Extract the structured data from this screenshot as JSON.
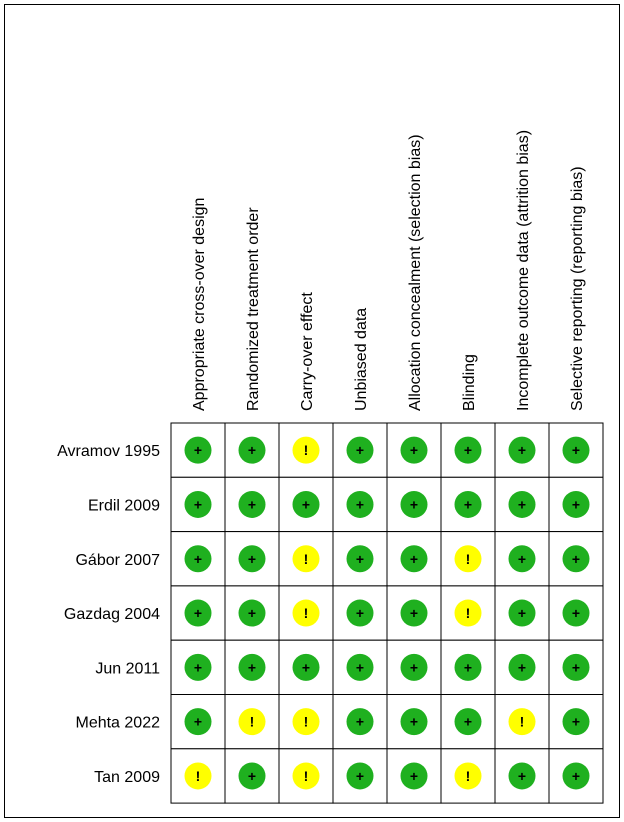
{
  "columns": [
    "Appropriate cross-over design",
    "Randomized treatment order",
    "Carry-over effect",
    "Unbiased data",
    "Allocation concealment (selection bias)",
    "Blinding",
    "Incomplete outcome data (attrition bias)",
    "Selective reporting (reporting bias)"
  ],
  "rows": [
    {
      "label": "Avramov 1995",
      "cells": [
        {
          "text": "+",
          "color": "#1fb01f"
        },
        {
          "text": "+",
          "color": "#1fb01f"
        },
        {
          "text": "!",
          "color": "#ffff00"
        },
        {
          "text": "+",
          "color": "#1fb01f"
        },
        {
          "text": "+",
          "color": "#1fb01f"
        },
        {
          "text": "+",
          "color": "#1fb01f"
        },
        {
          "text": "+",
          "color": "#1fb01f"
        },
        {
          "text": "+",
          "color": "#1fb01f"
        }
      ]
    },
    {
      "label": "Erdil 2009",
      "cells": [
        {
          "text": "+",
          "color": "#1fb01f"
        },
        {
          "text": "+",
          "color": "#1fb01f"
        },
        {
          "text": "+",
          "color": "#1fb01f"
        },
        {
          "text": "+",
          "color": "#1fb01f"
        },
        {
          "text": "+",
          "color": "#1fb01f"
        },
        {
          "text": "+",
          "color": "#1fb01f"
        },
        {
          "text": "+",
          "color": "#1fb01f"
        },
        {
          "text": "+",
          "color": "#1fb01f"
        }
      ]
    },
    {
      "label": "Gábor 2007",
      "cells": [
        {
          "text": "+",
          "color": "#1fb01f"
        },
        {
          "text": "+",
          "color": "#1fb01f"
        },
        {
          "text": "!",
          "color": "#ffff00"
        },
        {
          "text": "+",
          "color": "#1fb01f"
        },
        {
          "text": "+",
          "color": "#1fb01f"
        },
        {
          "text": "!",
          "color": "#ffff00"
        },
        {
          "text": "+",
          "color": "#1fb01f"
        },
        {
          "text": "+",
          "color": "#1fb01f"
        }
      ]
    },
    {
      "label": "Gazdag 2004",
      "cells": [
        {
          "text": "+",
          "color": "#1fb01f"
        },
        {
          "text": "+",
          "color": "#1fb01f"
        },
        {
          "text": "!",
          "color": "#ffff00"
        },
        {
          "text": "+",
          "color": "#1fb01f"
        },
        {
          "text": "+",
          "color": "#1fb01f"
        },
        {
          "text": "!",
          "color": "#ffff00"
        },
        {
          "text": "+",
          "color": "#1fb01f"
        },
        {
          "text": "+",
          "color": "#1fb01f"
        }
      ]
    },
    {
      "label": "Jun 2011",
      "cells": [
        {
          "text": "+",
          "color": "#1fb01f"
        },
        {
          "text": "+",
          "color": "#1fb01f"
        },
        {
          "text": "+",
          "color": "#1fb01f"
        },
        {
          "text": "+",
          "color": "#1fb01f"
        },
        {
          "text": "+",
          "color": "#1fb01f"
        },
        {
          "text": "+",
          "color": "#1fb01f"
        },
        {
          "text": "+",
          "color": "#1fb01f"
        },
        {
          "text": "+",
          "color": "#1fb01f"
        }
      ]
    },
    {
      "label": "Mehta 2022",
      "cells": [
        {
          "text": "+",
          "color": "#1fb01f"
        },
        {
          "text": "!",
          "color": "#ffff00"
        },
        {
          "text": "!",
          "color": "#ffff00"
        },
        {
          "text": "+",
          "color": "#1fb01f"
        },
        {
          "text": "+",
          "color": "#1fb01f"
        },
        {
          "text": "+",
          "color": "#1fb01f"
        },
        {
          "text": "!",
          "color": "#ffff00"
        },
        {
          "text": "+",
          "color": "#1fb01f"
        }
      ]
    },
    {
      "label": "Tan 2009",
      "cells": [
        {
          "text": "!",
          "color": "#ffff00"
        },
        {
          "text": "+",
          "color": "#1fb01f"
        },
        {
          "text": "!",
          "color": "#ffff00"
        },
        {
          "text": "+",
          "color": "#1fb01f"
        },
        {
          "text": "+",
          "color": "#1fb01f"
        },
        {
          "text": "!",
          "color": "#ffff00"
        },
        {
          "text": "+",
          "color": "#1fb01f"
        },
        {
          "text": "+",
          "color": "#1fb01f"
        }
      ]
    }
  ]
}
